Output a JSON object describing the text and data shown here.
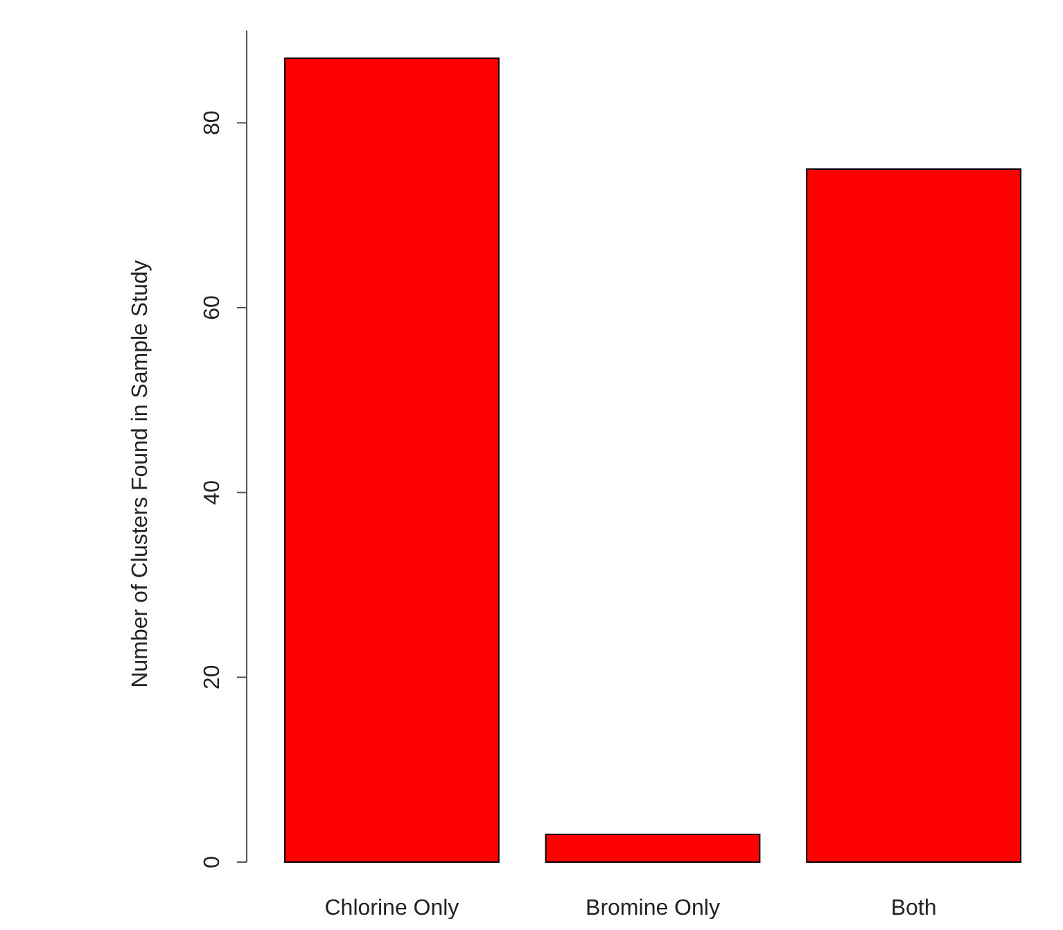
{
  "chart_data": {
    "type": "bar",
    "ylabel": "Number of Clusters Found in Sample Study",
    "categories": [
      "Chlorine Only",
      "Bromine Only",
      "Both"
    ],
    "values": [
      87,
      3,
      75
    ],
    "color": "#ff0000",
    "ylim": [
      0,
      90
    ],
    "yticks": [
      0,
      20,
      40,
      60,
      80
    ],
    "grid": false
  }
}
